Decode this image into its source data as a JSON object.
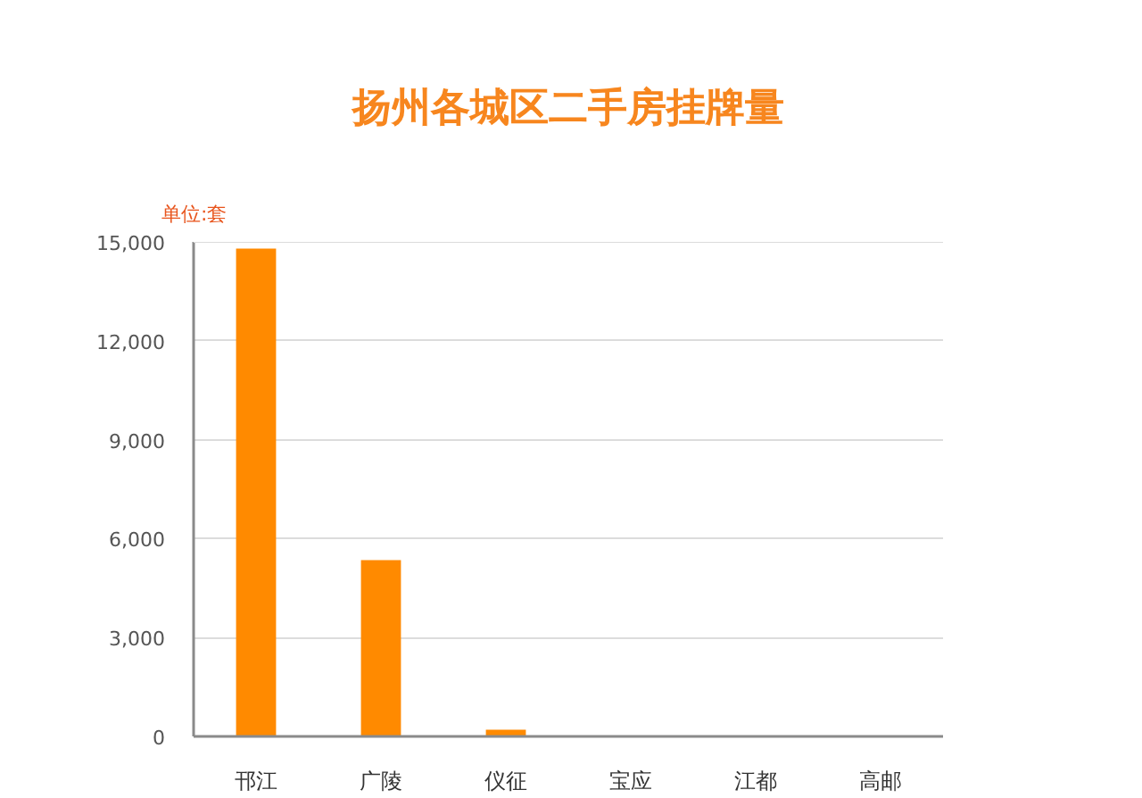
{
  "chart_data": {
    "type": "bar",
    "title": "扬州各城区二手房挂牌量",
    "annotations": [
      "单位:套"
    ],
    "categories": [
      "邗江",
      "广陵",
      "仪征",
      "宝应",
      "江都",
      "高邮"
    ],
    "values": [
      14800,
      5350,
      200,
      0,
      0,
      0
    ],
    "color": "#ff8a00",
    "ylim": [
      0,
      15000
    ],
    "yticks": [
      0,
      {
        "value": 3000,
        "label": "3,000"
      },
      {
        "value": 6000,
        "label": "6,000"
      },
      {
        "value": 9000,
        "label": "9,000"
      },
      {
        "value": 12000,
        "label": "12,000"
      },
      {
        "value": 15000,
        "label": "15,000"
      }
    ],
    "grid": "y"
  }
}
